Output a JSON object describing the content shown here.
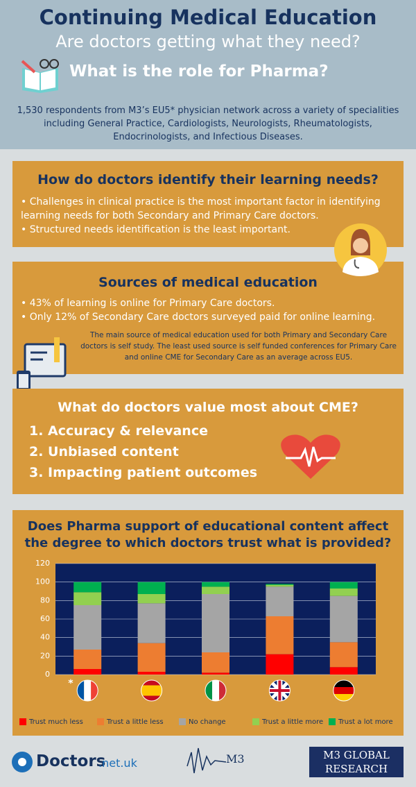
{
  "header": {
    "title": "Continuing Medical Education",
    "subtitle": "Are doctors getting what they need?",
    "question": "What is the role for Pharma?",
    "description": "1,530 respondents from M3’s EU5* physician network across a variety of specialities including General Practice, Cardiologists, Neurologists, Rheumatologists, Endocrinologists, and Infectious Diseases."
  },
  "sections": [
    {
      "title": "How do doctors identify their learning needs?",
      "bullets": [
        "• Challenges in clinical practice is the most important factor in identifying learning needs for both Secondary and Primary Care doctors.",
        "• Structured needs identification is the least important."
      ]
    },
    {
      "title": "Sources of medical education",
      "bullets": [
        "• 43% of learning is online for Primary Care doctors.",
        "• Only 12% of Secondary Care doctors surveyed paid for online learning."
      ],
      "note": "The main source of medical education used for both Primary and Secondary Care doctors is self study. The least used source is self funded conferences for Primary Care and online CME for Secondary Care as an average across EU5."
    },
    {
      "title": "What do doctors value most about CME?",
      "items": [
        "1. Accuracy & relevance",
        "2. Unbiased content",
        "3. Impacting patient outcomes"
      ]
    }
  ],
  "chart_data": {
    "type": "stacked_bar",
    "title": "Does Pharma support of educational content affect the degree to which doctors trust what is provided?",
    "annotation": "*",
    "categories": [
      null,
      null,
      null,
      null,
      null
    ],
    "series": [
      {
        "name": "Trust much less",
        "color": "#ff0000",
        "values": [
          6,
          3,
          2,
          22,
          8
        ]
      },
      {
        "name": "Trust a little less",
        "color": "#ed7d31",
        "values": [
          21,
          31,
          22,
          41,
          27
        ]
      },
      {
        "name": "No change",
        "color": "#a5a5a5",
        "values": [
          48,
          43,
          63,
          32,
          50
        ]
      },
      {
        "name": "Trust a little more",
        "color": "#92d050",
        "values": [
          14,
          10,
          8,
          2,
          8
        ]
      },
      {
        "name": "Trust a lot more",
        "color": "#00b050",
        "values": [
          11,
          13,
          5,
          1,
          7
        ]
      }
    ],
    "ylim": [
      0,
      120
    ],
    "yticks": [
      0,
      20,
      40,
      60,
      80,
      100,
      120
    ],
    "grid": true
  },
  "footer": {
    "logos": [
      "Doctors",
      ".net.uk",
      "M3",
      "M3 GLOBAL",
      "RESEARCH"
    ]
  }
}
